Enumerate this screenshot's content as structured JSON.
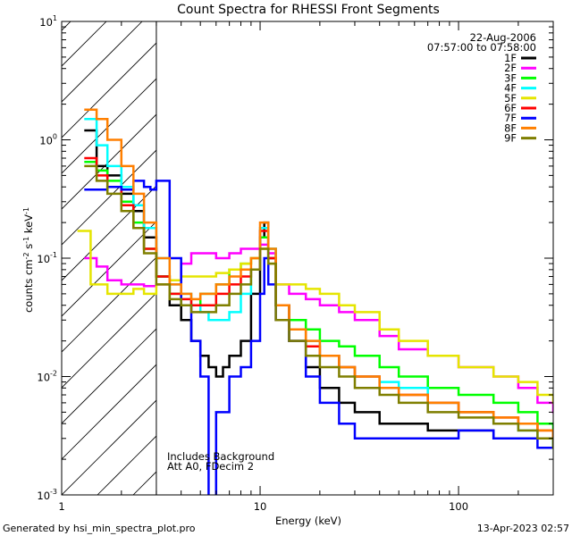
{
  "chart_data": {
    "type": "line",
    "title": "Count Spectra for RHESSI Front Segments",
    "xlabel": "Energy (keV)",
    "ylabel_main": "counts cm",
    "ylabel_exp1": "-2",
    "ylabel_mid": " s",
    "ylabel_exp2": "-1",
    "ylabel_end": " keV",
    "ylabel_exp3": "-1",
    "xscale": "log",
    "yscale": "log",
    "xlim": [
      1,
      300
    ],
    "ylim": [
      0.001,
      10
    ],
    "x_ticks": [
      {
        "value": 1,
        "label": "1"
      },
      {
        "value": 10,
        "label": "10"
      },
      {
        "value": 100,
        "label": "100"
      }
    ],
    "y_ticks": [
      {
        "value": 0.001,
        "base": "10",
        "exp": "-3"
      },
      {
        "value": 0.01,
        "base": "10",
        "exp": "-2"
      },
      {
        "value": 0.1,
        "base": "10",
        "exp": "-1"
      },
      {
        "value": 1,
        "base": "10",
        "exp": "0"
      },
      {
        "value": 10,
        "base": "10",
        "exp": "1"
      }
    ],
    "date": "22-Aug-2006",
    "time_range": "07:57:00 to 07:58:00",
    "annotations": [
      "Includes Background",
      "Att A0, FDecim 2"
    ],
    "shaded_region_max_kev": 3,
    "legend_position": "top-right",
    "series": [
      {
        "name": "1F",
        "color": "#000000",
        "x": [
          1.3,
          1.5,
          1.7,
          2.0,
          2.3,
          2.6,
          3.0,
          3.5,
          4.0,
          4.5,
          5.0,
          5.5,
          6.0,
          6.5,
          7.0,
          8.0,
          9.0,
          10.0,
          10.5,
          11.0,
          12,
          14,
          17,
          20,
          25,
          30,
          40,
          50,
          70,
          100,
          150,
          200,
          250,
          300
        ],
        "y": [
          1.2,
          0.6,
          0.5,
          0.35,
          0.25,
          0.15,
          0.07,
          0.04,
          0.03,
          0.02,
          0.015,
          0.012,
          0.01,
          0.012,
          0.015,
          0.02,
          0.05,
          0.15,
          0.2,
          0.1,
          0.04,
          0.02,
          0.012,
          0.008,
          0.006,
          0.005,
          0.004,
          0.004,
          0.0035,
          0.0035,
          0.003,
          0.003,
          0.003,
          0.0025
        ]
      },
      {
        "name": "2F",
        "color": "#ff00ff",
        "x": [
          1.3,
          1.5,
          1.7,
          2.0,
          2.3,
          2.6,
          3.0,
          3.5,
          4.0,
          4.5,
          5.0,
          5.5,
          6.0,
          7.0,
          8.0,
          9.0,
          10.0,
          11.0,
          12,
          14,
          17,
          20,
          25,
          30,
          40,
          50,
          70,
          100,
          150,
          200,
          250,
          300
        ],
        "y": [
          0.1,
          0.085,
          0.065,
          0.06,
          0.06,
          0.058,
          0.06,
          0.065,
          0.09,
          0.11,
          0.11,
          0.11,
          0.1,
          0.11,
          0.12,
          0.12,
          0.13,
          0.11,
          0.06,
          0.05,
          0.045,
          0.04,
          0.035,
          0.03,
          0.022,
          0.017,
          0.015,
          0.012,
          0.01,
          0.008,
          0.006,
          0.005
        ]
      },
      {
        "name": "3F",
        "color": "#00ff00",
        "x": [
          1.3,
          1.5,
          1.7,
          2.0,
          2.3,
          2.6,
          3.0,
          3.5,
          4.0,
          4.5,
          5.0,
          6.0,
          7.0,
          8.0,
          9.0,
          10.0,
          11.0,
          12,
          14,
          17,
          20,
          25,
          30,
          40,
          50,
          70,
          100,
          150,
          200,
          250,
          300
        ],
        "y": [
          0.65,
          0.55,
          0.45,
          0.3,
          0.2,
          0.12,
          0.07,
          0.05,
          0.04,
          0.04,
          0.05,
          0.06,
          0.08,
          0.09,
          0.1,
          0.15,
          0.12,
          0.04,
          0.03,
          0.025,
          0.02,
          0.018,
          0.015,
          0.012,
          0.01,
          0.008,
          0.007,
          0.006,
          0.005,
          0.004,
          0.003
        ]
      },
      {
        "name": "4F",
        "color": "#00ffff",
        "x": [
          1.3,
          1.5,
          1.7,
          2.0,
          2.3,
          2.6,
          3.0,
          3.5,
          4.0,
          4.5,
          5.0,
          5.5,
          6.0,
          7.0,
          8.0,
          9.0,
          10.0,
          11.0,
          12,
          14,
          17,
          20,
          25,
          30,
          40,
          50,
          70,
          100,
          150,
          200,
          250,
          300
        ],
        "y": [
          1.5,
          0.9,
          0.6,
          0.4,
          0.28,
          0.18,
          0.1,
          0.06,
          0.05,
          0.04,
          0.035,
          0.03,
          0.03,
          0.035,
          0.05,
          0.08,
          0.18,
          0.12,
          0.04,
          0.025,
          0.02,
          0.015,
          0.012,
          0.01,
          0.009,
          0.008,
          0.006,
          0.005,
          0.004,
          0.0035,
          0.003,
          0.0025
        ]
      },
      {
        "name": "5F",
        "color": "#e5e500",
        "x": [
          1.2,
          1.4,
          1.7,
          2.0,
          2.3,
          2.6,
          3.0,
          3.5,
          4.0,
          5.0,
          6.0,
          7.0,
          8.0,
          9.0,
          10.0,
          11.0,
          12.0,
          14,
          17,
          20,
          25,
          30,
          40,
          50,
          70,
          100,
          150,
          200,
          250,
          300
        ],
        "y": [
          0.17,
          0.06,
          0.05,
          0.05,
          0.055,
          0.05,
          0.06,
          0.065,
          0.07,
          0.07,
          0.075,
          0.08,
          0.09,
          0.1,
          0.12,
          0.09,
          0.06,
          0.06,
          0.055,
          0.05,
          0.04,
          0.035,
          0.025,
          0.02,
          0.015,
          0.012,
          0.01,
          0.009,
          0.007,
          0.006
        ]
      },
      {
        "name": "6F",
        "color": "#ff0000",
        "x": [
          1.3,
          1.5,
          1.7,
          2.0,
          2.3,
          2.6,
          3.0,
          3.5,
          4.0,
          4.5,
          5.0,
          6.0,
          7.0,
          8.0,
          9.0,
          10.0,
          11.0,
          12,
          14,
          17,
          20,
          25,
          30,
          40,
          50,
          70,
          100,
          150,
          200,
          250,
          300
        ],
        "y": [
          0.7,
          0.5,
          0.4,
          0.28,
          0.18,
          0.12,
          0.07,
          0.05,
          0.045,
          0.04,
          0.04,
          0.05,
          0.06,
          0.07,
          0.08,
          0.17,
          0.1,
          0.04,
          0.025,
          0.018,
          0.015,
          0.012,
          0.01,
          0.008,
          0.007,
          0.006,
          0.005,
          0.0045,
          0.004,
          0.0035,
          0.003
        ]
      },
      {
        "name": "7F",
        "color": "#0000ff",
        "x": [
          1.3,
          1.5,
          1.7,
          2.0,
          2.3,
          2.6,
          2.8,
          3.0,
          3.5,
          4.0,
          4.5,
          5.0,
          5.5,
          6.0,
          6.5,
          7.0,
          8.0,
          9.0,
          10.0,
          10.5,
          11.0,
          12,
          14,
          17,
          20,
          25,
          30,
          40,
          50,
          70,
          100,
          150,
          200,
          250,
          300
        ],
        "y": [
          0.38,
          0.38,
          0.4,
          0.38,
          0.45,
          0.4,
          0.38,
          0.45,
          0.1,
          0.04,
          0.02,
          0.01,
          0.0008,
          0.005,
          0.005,
          0.01,
          0.012,
          0.02,
          0.05,
          0.1,
          0.06,
          0.03,
          0.02,
          0.01,
          0.006,
          0.004,
          0.003,
          0.003,
          0.003,
          0.003,
          0.0035,
          0.003,
          0.003,
          0.0025,
          0.0025
        ]
      },
      {
        "name": "8F",
        "color": "#ff7f00",
        "x": [
          1.3,
          1.5,
          1.7,
          2.0,
          2.3,
          2.6,
          3.0,
          3.5,
          4.0,
          4.5,
          5.0,
          6.0,
          7.0,
          8.0,
          9.0,
          10.0,
          11.0,
          12,
          14,
          17,
          20,
          25,
          30,
          40,
          50,
          70,
          100,
          150,
          200,
          250,
          300
        ],
        "y": [
          1.8,
          1.5,
          1.0,
          0.6,
          0.35,
          0.2,
          0.1,
          0.06,
          0.05,
          0.045,
          0.05,
          0.06,
          0.07,
          0.08,
          0.1,
          0.2,
          0.12,
          0.04,
          0.025,
          0.02,
          0.015,
          0.012,
          0.01,
          0.008,
          0.007,
          0.006,
          0.005,
          0.0045,
          0.004,
          0.0035,
          0.003
        ]
      },
      {
        "name": "9F",
        "color": "#7f7f00",
        "x": [
          1.3,
          1.5,
          1.7,
          2.0,
          2.3,
          2.6,
          3.0,
          3.5,
          4.0,
          4.5,
          5.0,
          6.0,
          7.0,
          8.0,
          9.0,
          10.0,
          11.0,
          12,
          14,
          17,
          20,
          25,
          30,
          40,
          50,
          70,
          100,
          150,
          200,
          250,
          300
        ],
        "y": [
          0.6,
          0.45,
          0.35,
          0.25,
          0.18,
          0.11,
          0.06,
          0.045,
          0.04,
          0.035,
          0.035,
          0.04,
          0.05,
          0.06,
          0.08,
          0.12,
          0.09,
          0.03,
          0.02,
          0.015,
          0.012,
          0.01,
          0.008,
          0.007,
          0.006,
          0.005,
          0.0045,
          0.004,
          0.0035,
          0.003,
          0.0025
        ]
      }
    ]
  },
  "footer": {
    "generated_by": "Generated by hsi_min_spectra_plot.pro",
    "timestamp": "13-Apr-2023 02:57"
  }
}
